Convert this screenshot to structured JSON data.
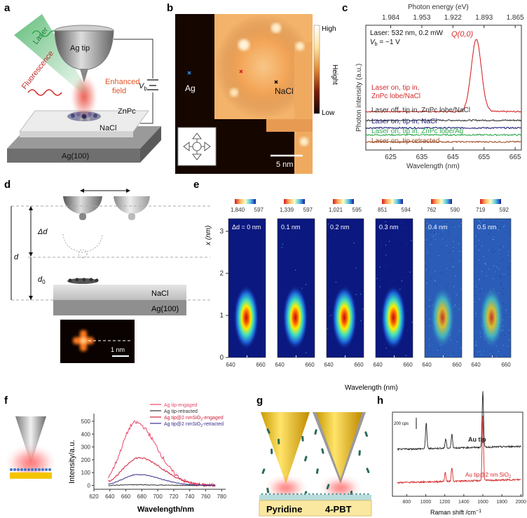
{
  "panel_labels": [
    "a",
    "b",
    "c",
    "d",
    "e",
    "f",
    "g",
    "h"
  ],
  "panel_a": {
    "tip": "Ag tip",
    "laser": "Laser",
    "fluorescence": "Fluorescence",
    "enhanced": "Enhanced",
    "field": "field",
    "vb": "V",
    "vb_sub": "b",
    "molecule": "ZnPc",
    "layer": "NaCl",
    "substrate": "Ag(100)",
    "colors": {
      "laser": "#2fa84f",
      "fluor": "#d2302a",
      "field": "#e24d3c"
    }
  },
  "panel_b": {
    "label_ag": "Ag",
    "label_nacl": "NaCl",
    "scalebar": "5 nm",
    "cb_high": "High",
    "cb_low": "Low",
    "cb_title": "Height"
  },
  "panel_c": {
    "chart_data": {
      "type": "line",
      "xlabel": "Wavelength (nm)",
      "ylabel": "Photon intensity (a.u.)",
      "x2label": "Photon energy (eV)",
      "xlim": [
        617,
        667
      ],
      "xticks": [
        625,
        635,
        645,
        655,
        665
      ],
      "x2ticks": [
        "1.984",
        "1.953",
        "1.922",
        "1.893",
        "1.865"
      ],
      "annotation": "Laser: 532 nm, 0.2 mW",
      "annotation2": "V",
      "annotation2_sub": "b",
      "annotation2_val": " = −1 V",
      "peak_label": "Q(0,0)",
      "peak_center": 652.5,
      "series": [
        {
          "name": "Laser on, tip in, ZnPc lobe/NaCl",
          "line1": "Laser on, tip in,",
          "line2": "ZnPc lobe/NaCl",
          "color": "#d42a2a",
          "baseline": 0.33,
          "peak": 1.0
        },
        {
          "name": "Laser off, tip in, ZnPc lobe/NaCl",
          "color": "#333333",
          "baseline": 0.255,
          "peak": 0
        },
        {
          "name": "Laser on, tip in, NaCl",
          "color": "#1f1f7a",
          "baseline": 0.19,
          "peak": 0
        },
        {
          "name": "Laser on, tip in, ZnPc lobe/Ag",
          "color": "#2fa84f",
          "baseline": 0.13,
          "peak": 0
        },
        {
          "name": "Laser on, tip retracted",
          "color": "#a0522d",
          "baseline": 0.07,
          "peak": 0
        }
      ]
    }
  },
  "panel_d": {
    "delta_d": "Δd",
    "d": "d",
    "d0": "d",
    "d0_sub": "0",
    "layer": "NaCl",
    "substrate": "Ag(100)",
    "scalebar": "1 nm"
  },
  "panel_e": {
    "chart_data": {
      "type": "heatmap",
      "xlabel": "Wavelength (nm)",
      "ylabel": "x (nm)",
      "xticks": [
        640,
        660
      ],
      "yticks": [
        0,
        1,
        2,
        3
      ],
      "panels": [
        {
          "label": "Δd = 0 nm",
          "cb_max": "1,840",
          "cb_min": "597",
          "noise": 0.0
        },
        {
          "label": "0.1 nm",
          "cb_max": "1,339",
          "cb_min": "597",
          "noise": 0.05
        },
        {
          "label": "0.2 nm",
          "cb_max": "1,021",
          "cb_min": "595",
          "noise": 0.1
        },
        {
          "label": "0.3 nm",
          "cb_max": "851",
          "cb_min": "594",
          "noise": 0.18
        },
        {
          "label": "0.4 nm",
          "cb_max": "762",
          "cb_min": "590",
          "noise": 0.45
        },
        {
          "label": "0.5 nm",
          "cb_max": "719",
          "cb_min": "592",
          "noise": 0.6
        }
      ]
    }
  },
  "panel_f": {
    "chart_data": {
      "type": "line",
      "xlabel": "Wavelength/nm",
      "ylabel": "Intensity/a.u.",
      "xlim": [
        620,
        785
      ],
      "ylim": [
        -30,
        560
      ],
      "xticks": [
        620,
        640,
        660,
        680,
        700,
        720,
        740,
        760,
        780
      ],
      "yticks": [
        0,
        100,
        200,
        300,
        400,
        500
      ],
      "series": [
        {
          "name": "Ag tip-engaged",
          "color": "#e8476a",
          "peak": 490,
          "center": 672,
          "width": 36
        },
        {
          "name": "Ag tip-retracted",
          "color": "#333333",
          "peak": 5,
          "center": 672,
          "width": 36
        },
        {
          "name": "Ag tip@2 nmSiO2-engaged",
          "base": "Ag tip@2 nmSiO",
          "sub": "2",
          "rest": "-engaged",
          "color": "#d0203a",
          "peak": 215,
          "center": 676,
          "width": 40
        },
        {
          "name": "Ag tip@2 nmSiO2-retracted",
          "base": "Ag tip@2 nmSiO",
          "sub": "2",
          "rest": "-retracted",
          "color": "#3a2d8a",
          "peak": 85,
          "center": 675,
          "width": 38
        }
      ]
    }
  },
  "panel_g": {
    "label_left": "Pyridine",
    "label_right": "4-PBT"
  },
  "panel_h": {
    "chart_data": {
      "type": "line",
      "xlabel": "Raman shift /cm",
      "xlabel_sup": "−1",
      "xlim": [
        650,
        2020
      ],
      "xticks": [
        800,
        1000,
        1200,
        1400,
        1600,
        1800,
        2000
      ],
      "scale_label": "200 cps",
      "series": [
        {
          "name": "Au tip",
          "color": "#222222",
          "offset": 0.62,
          "peaks": [
            [
              1005,
              0.35
            ],
            [
              1210,
              0.12
            ],
            [
              1275,
              0.18
            ],
            [
              1600,
              0.75
            ]
          ]
        },
        {
          "name": "Au tip@2 nm SiO",
          "sub": "2",
          "color": "#d42a2a",
          "offset": 0.18,
          "peaks": [
            [
              1205,
              0.12
            ],
            [
              1275,
              0.18
            ],
            [
              1600,
              0.85
            ]
          ]
        }
      ]
    }
  }
}
